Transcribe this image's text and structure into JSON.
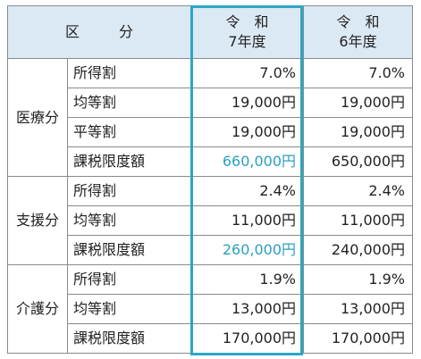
{
  "header": {
    "kubun_left": "区",
    "kubun_right": "分",
    "r7_line1": "令　和",
    "r7_line2": "7年度",
    "r6_line1": "令　和",
    "r6_line2": "6年度"
  },
  "sections": [
    {
      "category": "医療分",
      "rows": [
        {
          "item": "所得割",
          "r7": "7.0%",
          "r6": "7.0%"
        },
        {
          "item": "均等割",
          "r7": "19,000円",
          "r6": "19,000円"
        },
        {
          "item": "平等割",
          "r7": "19,000円",
          "r6": "19,000円"
        },
        {
          "item": "課税限度額",
          "r7": "660,000円",
          "r6": "650,000円"
        }
      ]
    },
    {
      "category": "支援分",
      "rows": [
        {
          "item": "所得割",
          "r7": "2.4%",
          "r6": "2.4%"
        },
        {
          "item": "均等割",
          "r7": "11,000円",
          "r6": "11,000円"
        },
        {
          "item": "課税限度額",
          "r7": "260,000円",
          "r6": "240,000円"
        }
      ]
    },
    {
      "category": "介護分",
      "rows": [
        {
          "item": "所得割",
          "r7": "1.9%",
          "r6": "1.9%"
        },
        {
          "item": "均等割",
          "r7": "13,000円",
          "r6": "13,000円"
        },
        {
          "item": "課税限度額",
          "r7": "170,000円",
          "r6": "170,000円"
        }
      ]
    }
  ],
  "colors": {
    "header_bg": "#dbe9f5",
    "highlight_frame": "#2aa7c4",
    "changed_value_text": "#2aa0c0"
  }
}
